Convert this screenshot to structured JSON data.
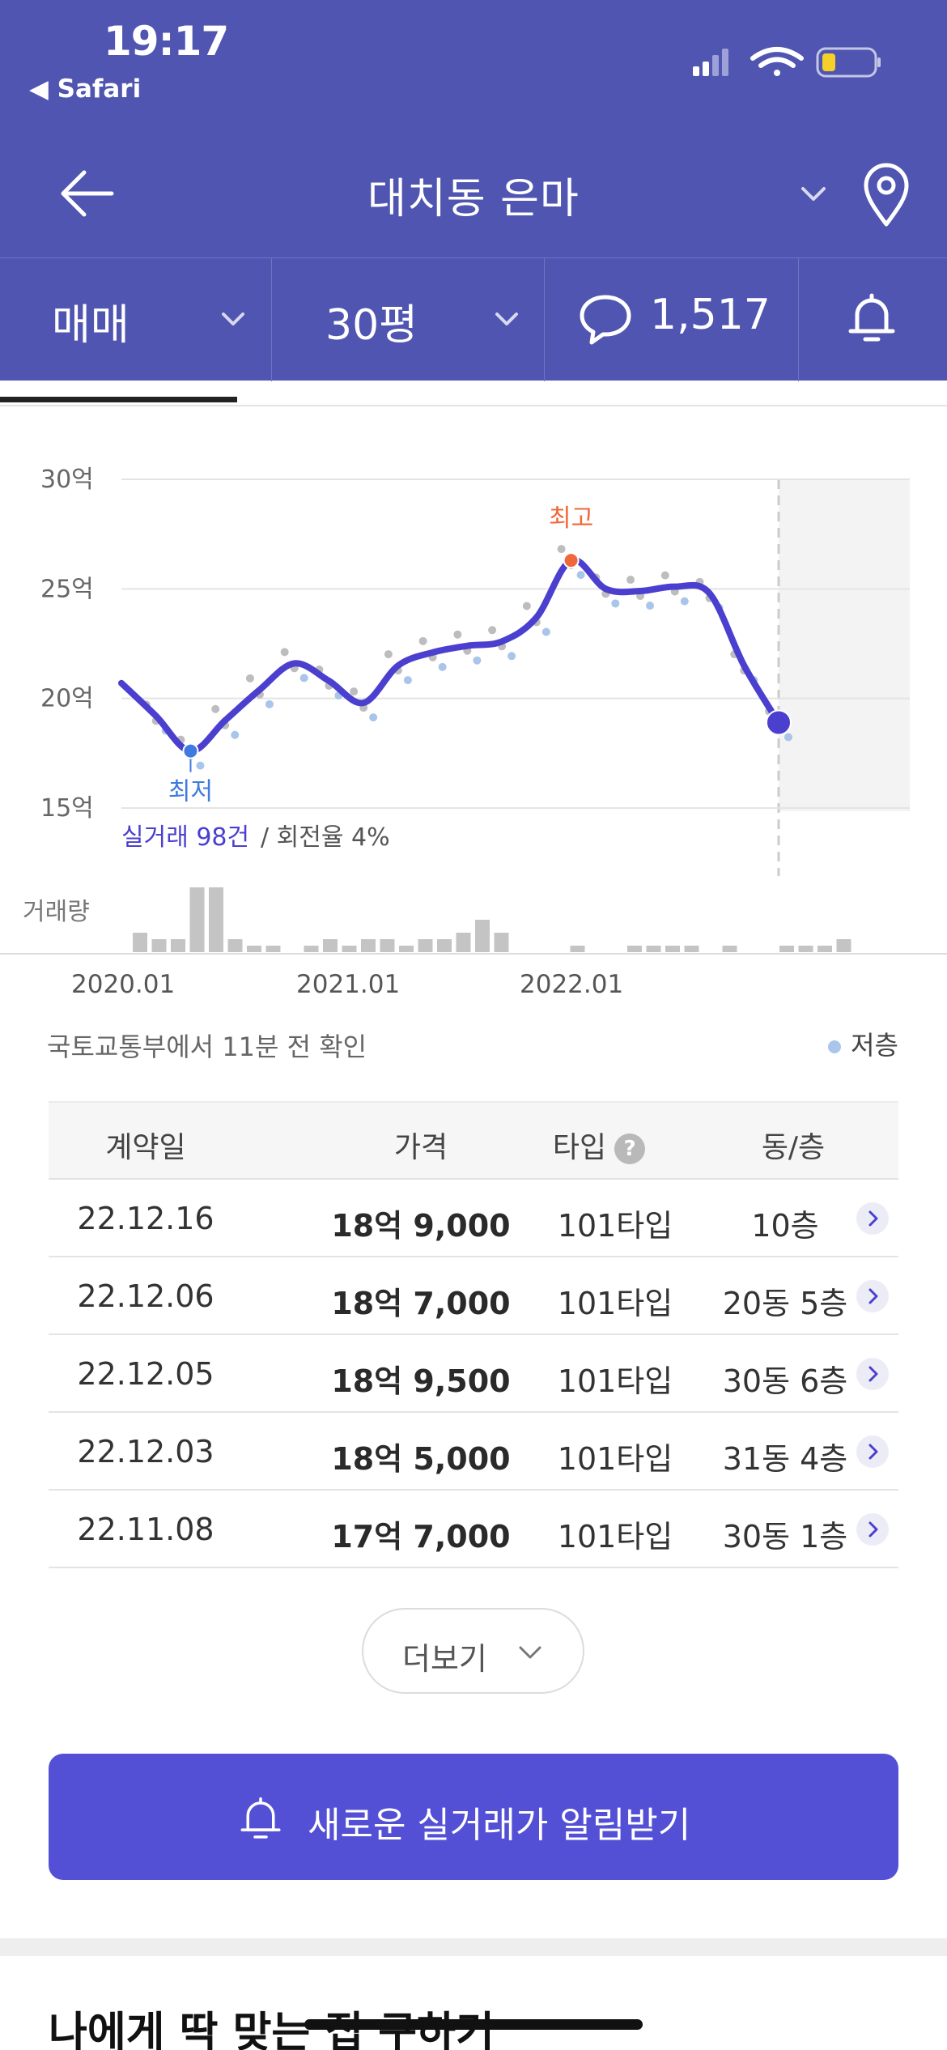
{
  "status_bar": {
    "time": "19:17",
    "back_app": "◀ Safari"
  },
  "nav": {
    "title": "대치동 은마"
  },
  "filters": {
    "trade_type": "매매",
    "size": "30평",
    "comment_count": "1,517"
  },
  "chart_data": {
    "type": "line",
    "y_ticks": [
      "30억",
      "25억",
      "20억",
      "15억"
    ],
    "ylim": [
      15,
      30
    ],
    "x_ticks": [
      "2020.01",
      "2021.01",
      "2022.01"
    ],
    "series": [
      {
        "x": [
          "2019.10",
          "2019.12",
          "2020.02",
          "2020.04",
          "2020.06",
          "2020.08",
          "2020.10",
          "2020.12",
          "2021.02",
          "2021.04",
          "2021.06",
          "2021.08",
          "2021.10",
          "2021.12",
          "2022.02",
          "2022.04",
          "2022.06",
          "2022.08",
          "2022.10",
          "2022.12"
        ],
        "values": [
          20.7,
          19.2,
          17.6,
          19.0,
          20.4,
          21.6,
          20.8,
          19.8,
          21.5,
          22.1,
          22.4,
          22.6,
          23.7,
          26.3,
          25.0,
          24.9,
          25.1,
          24.8,
          21.5,
          18.9
        ]
      }
    ],
    "annotations": {
      "high_label": "최고",
      "low_label": "최저"
    },
    "volume_label": "거래량",
    "volume": [
      3,
      2,
      2,
      10,
      10,
      2,
      1,
      1,
      0,
      1,
      2,
      1,
      2,
      2,
      1,
      2,
      2,
      3,
      5,
      3,
      0,
      0,
      0,
      1,
      0,
      0,
      1,
      1,
      1,
      1,
      0,
      1,
      0,
      0,
      1,
      1,
      1,
      2
    ]
  },
  "chart_summary": {
    "count_label": "실거래 98건",
    "turnover_label": "/ 회전율 4%"
  },
  "source_note": "국토교통부에서 11분 전 확인",
  "legend_label": "저층",
  "table": {
    "headers": {
      "date": "계약일",
      "price": "가격",
      "type": "타입",
      "unit": "동/층"
    },
    "rows": [
      {
        "date": "22.12.16",
        "price": "18억 9,000",
        "type": "101타입",
        "unit": "10층"
      },
      {
        "date": "22.12.06",
        "price": "18억 7,000",
        "type": "101타입",
        "unit": "20동 5층"
      },
      {
        "date": "22.12.05",
        "price": "18억 9,500",
        "type": "101타입",
        "unit": "30동 6층"
      },
      {
        "date": "22.12.03",
        "price": "18억 5,000",
        "type": "101타입",
        "unit": "31동 4층"
      },
      {
        "date": "22.11.08",
        "price": "17억 7,000",
        "type": "101타입",
        "unit": "30동 1층"
      }
    ]
  },
  "more_button": "더보기",
  "cta_button": "새로운 실거래가 알림받기",
  "section_title": "나에게 딱 맞는 집 구하기"
}
